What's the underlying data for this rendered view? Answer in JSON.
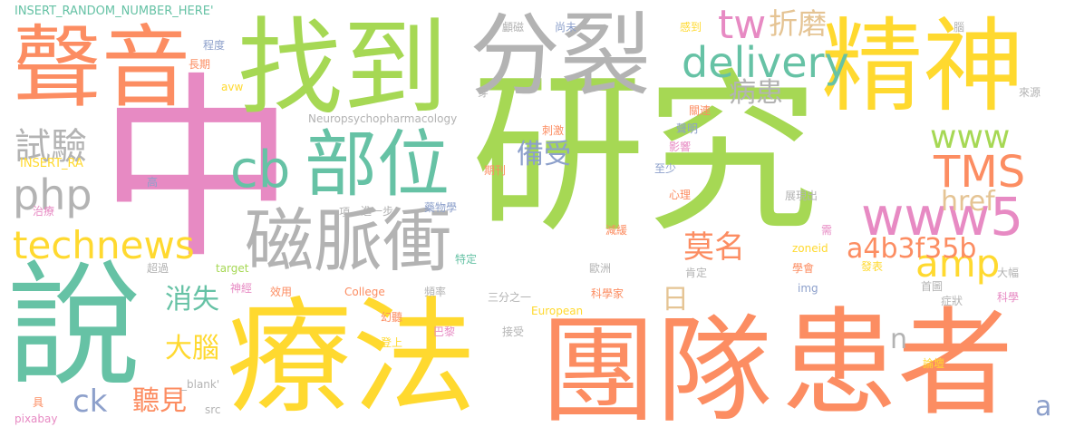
{
  "palette": {
    "green": "#a6d854",
    "pink": "#e78ac3",
    "orange": "#fc8d62",
    "yellow": "#ffd92f",
    "teal": "#66c2a5",
    "gray": "#b3b3b3",
    "blue": "#8da0cb",
    "tan": "#e5c494"
  },
  "words": [
    {
      "text": "研究",
      "color": "green"
    },
    {
      "text": "中",
      "color": "pink"
    },
    {
      "text": "療法",
      "color": "yellow"
    },
    {
      "text": "患者",
      "color": "orange"
    },
    {
      "text": "說",
      "color": "teal"
    },
    {
      "text": "團隊",
      "color": "orange"
    },
    {
      "text": "找到",
      "color": "green"
    },
    {
      "text": "分裂",
      "color": "gray"
    },
    {
      "text": "精神",
      "color": "yellow"
    },
    {
      "text": "聲音",
      "color": "orange"
    },
    {
      "text": "部位",
      "color": "teal"
    },
    {
      "text": "磁脈衝",
      "color": "gray"
    },
    {
      "text": "www5",
      "color": "pink"
    },
    {
      "text": "technews",
      "color": "yellow"
    },
    {
      "text": "delivery",
      "color": "teal"
    },
    {
      "text": "php",
      "color": "gray"
    },
    {
      "text": "cb",
      "color": "teal"
    },
    {
      "text": "TMS",
      "color": "orange"
    },
    {
      "text": "www",
      "color": "green"
    },
    {
      "text": "amp",
      "color": "yellow"
    },
    {
      "text": "tw",
      "color": "pink"
    },
    {
      "text": "試驗",
      "color": "gray"
    },
    {
      "text": "href",
      "color": "tan"
    },
    {
      "text": "a4b3f35b",
      "color": "orange"
    },
    {
      "text": "莫名",
      "color": "orange"
    },
    {
      "text": "折磨",
      "color": "tan"
    },
    {
      "text": "病患",
      "color": "gray"
    },
    {
      "text": "備受",
      "color": "blue"
    },
    {
      "text": "消失",
      "color": "teal"
    },
    {
      "text": "大腦",
      "color": "yellow"
    },
    {
      "text": "聽見",
      "color": "orange"
    },
    {
      "text": "ck",
      "color": "blue"
    },
    {
      "text": "日",
      "color": "tan"
    },
    {
      "text": "n",
      "color": "gray"
    },
    {
      "text": "a",
      "color": "blue"
    },
    {
      "text": "INSERT_RANDOM_NUMBER_HERE'",
      "color": "teal"
    },
    {
      "text": "INSERT_RA",
      "color": "yellow"
    },
    {
      "text": "Neuropsychopharmacology",
      "color": "gray"
    },
    {
      "text": "程度",
      "color": "blue"
    },
    {
      "text": "長期",
      "color": "orange"
    },
    {
      "text": "avw",
      "color": "yellow"
    },
    {
      "text": "高",
      "color": "blue"
    },
    {
      "text": "治療",
      "color": "pink"
    },
    {
      "text": "項",
      "color": "gray"
    },
    {
      "text": "進一步",
      "color": "gray"
    },
    {
      "text": "藥物學",
      "color": "blue"
    },
    {
      "text": "期刊",
      "color": "orange"
    },
    {
      "text": "刺激",
      "color": "orange"
    },
    {
      "text": "超過",
      "color": "gray"
    },
    {
      "text": "target",
      "color": "green"
    },
    {
      "text": "神經",
      "color": "pink"
    },
    {
      "text": "效用",
      "color": "orange"
    },
    {
      "text": "College",
      "color": "orange"
    },
    {
      "text": "頻率",
      "color": "gray"
    },
    {
      "text": "特定",
      "color": "teal"
    },
    {
      "text": "三分之一",
      "color": "gray"
    },
    {
      "text": "European",
      "color": "yellow"
    },
    {
      "text": "幻聽",
      "color": "orange"
    },
    {
      "text": "巴黎",
      "color": "pink"
    },
    {
      "text": "接受",
      "color": "gray"
    },
    {
      "text": "登上",
      "color": "yellow"
    },
    {
      "text": "_blank'",
      "color": "gray"
    },
    {
      "text": "具",
      "color": "orange"
    },
    {
      "text": "pixabay",
      "color": "pink"
    },
    {
      "text": "src",
      "color": "gray"
    },
    {
      "text": "顱磁",
      "color": "gray"
    },
    {
      "text": "尚未",
      "color": "blue"
    },
    {
      "text": "穿",
      "color": "gray"
    },
    {
      "text": "感到",
      "color": "yellow"
    },
    {
      "text": "關連",
      "color": "orange"
    },
    {
      "text": "聲明",
      "color": "blue"
    },
    {
      "text": "影響",
      "color": "pink"
    },
    {
      "text": "至少",
      "color": "blue"
    },
    {
      "text": "心理",
      "color": "orange"
    },
    {
      "text": "展現出",
      "color": "gray"
    },
    {
      "text": "減緩",
      "color": "orange"
    },
    {
      "text": "需",
      "color": "pink"
    },
    {
      "text": "zoneid",
      "color": "yellow"
    },
    {
      "text": "歐洲",
      "color": "gray"
    },
    {
      "text": "學會",
      "color": "orange"
    },
    {
      "text": "發表",
      "color": "yellow"
    },
    {
      "text": "肯定",
      "color": "gray"
    },
    {
      "text": "img",
      "color": "blue"
    },
    {
      "text": "首圖",
      "color": "gray"
    },
    {
      "text": "大幅",
      "color": "gray"
    },
    {
      "text": "科學家",
      "color": "orange"
    },
    {
      "text": "症狀",
      "color": "gray"
    },
    {
      "text": "科學",
      "color": "pink"
    },
    {
      "text": "論壇",
      "color": "yellow"
    },
    {
      "text": "腦",
      "color": "gray"
    },
    {
      "text": "來源",
      "color": "gray"
    }
  ]
}
